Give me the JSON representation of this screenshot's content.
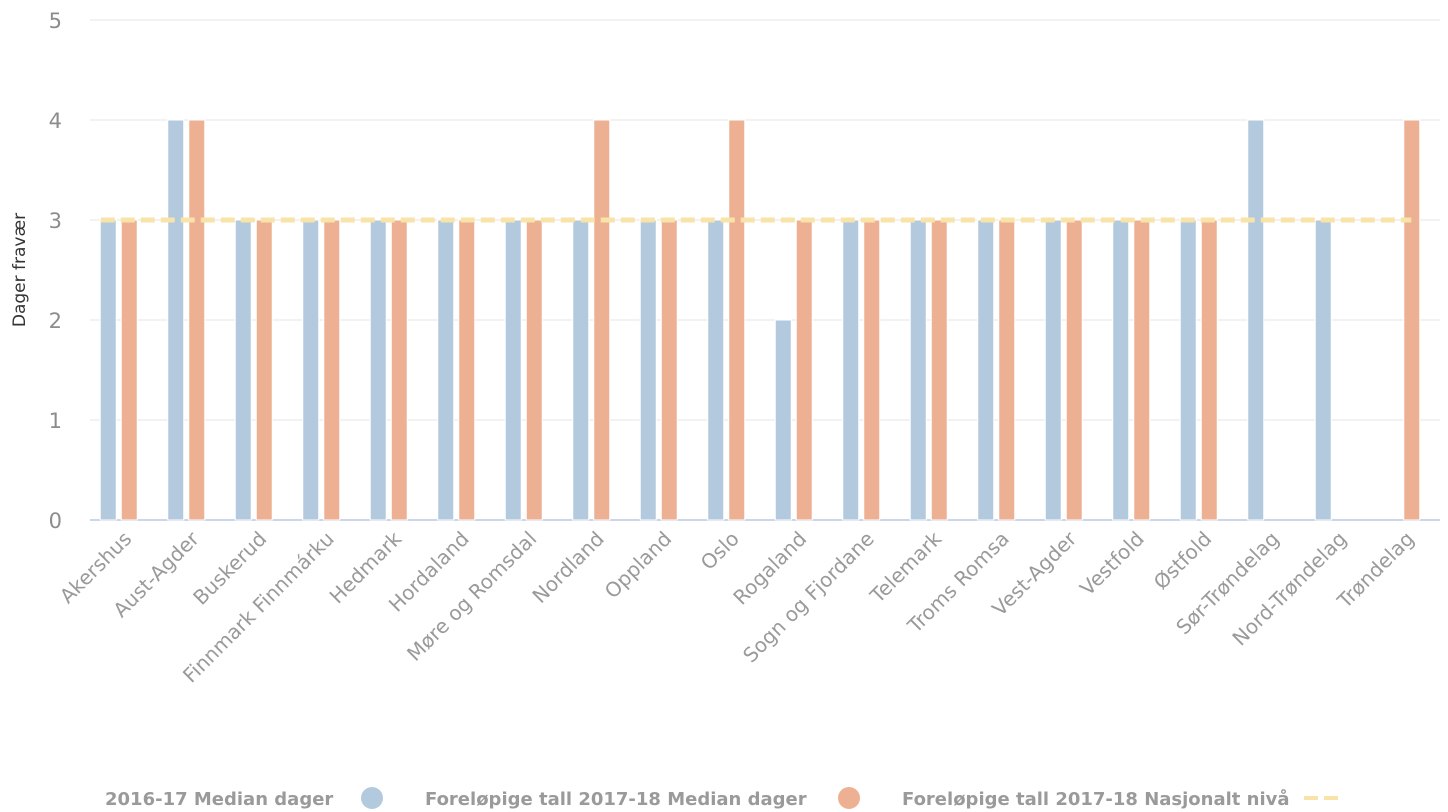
{
  "chart_data": {
    "type": "bar",
    "ylabel": "Dager fravær",
    "xlabel": "",
    "ylim": [
      0,
      5
    ],
    "yticks": [
      0,
      1,
      2,
      3,
      4,
      5
    ],
    "grid": true,
    "legend_position": "bottom",
    "categories": [
      "Akershus",
      "Aust-Agder",
      "Buskerud",
      "Finnmark Finnmárku",
      "Hedmark",
      "Hordaland",
      "Møre og Romsdal",
      "Nordland",
      "Oppland",
      "Oslo",
      "Rogaland",
      "Sogn og Fjordane",
      "Telemark",
      "Troms Romsa",
      "Vest-Agder",
      "Vestfold",
      "Østfold",
      "Sør-Trøndelag",
      "Nord-Trøndelag",
      "Trøndelag"
    ],
    "series": [
      {
        "name": "2016-17 Median dager",
        "kind": "bar",
        "color": "#b3c9de",
        "values": [
          3,
          4,
          3,
          3,
          3,
          3,
          3,
          3,
          3,
          3,
          2,
          3,
          3,
          3,
          3,
          3,
          3,
          4,
          3,
          null
        ]
      },
      {
        "name": "Foreløpige tall 2017-18 Median dager",
        "kind": "bar",
        "color": "#eeb093",
        "values": [
          3,
          4,
          3,
          3,
          3,
          3,
          3,
          4,
          3,
          4,
          3,
          3,
          3,
          3,
          3,
          3,
          3,
          null,
          null,
          4
        ]
      },
      {
        "name": "Foreløpige tall 2017-18 Nasjonalt nivå",
        "kind": "line",
        "color": "#f8e3a8",
        "value": 3
      }
    ]
  }
}
